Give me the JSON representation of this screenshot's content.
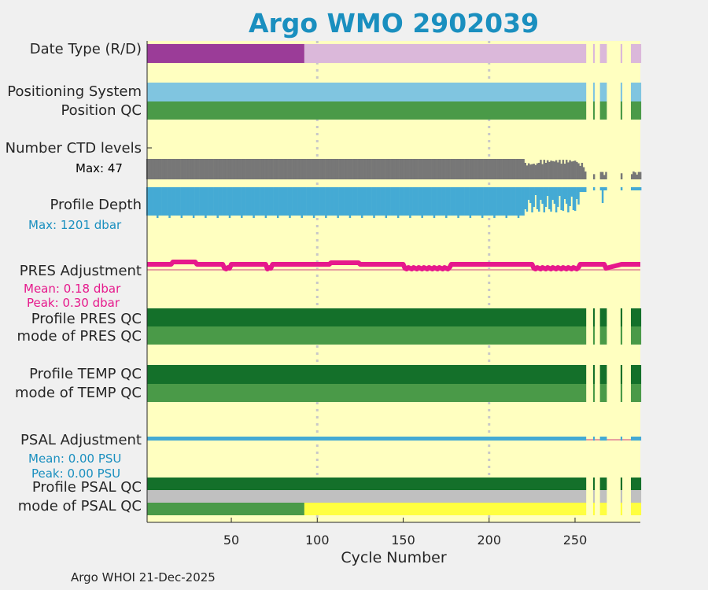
{
  "title": "Argo WMO 2902039",
  "footer": "Argo WHOI 21-Dec-2025",
  "labels": {
    "date_type": "Date Type (R/D)",
    "positioning": "Positioning System",
    "position_qc": "Position QC",
    "ctd_levels": "Number CTD levels",
    "ctd_max": "Max: 47",
    "profile_depth": "Profile Depth",
    "depth_max": "Max: 1201 dbar",
    "pres_adj": "PRES Adjustment",
    "pres_mean": "Mean: 0.18 dbar",
    "pres_peak": "Peak: 0.30 dbar",
    "pres_qc": "Profile PRES QC",
    "pres_mode": "mode of PRES QC",
    "temp_qc": "Profile TEMP QC",
    "temp_mode": "mode of TEMP QC",
    "psal_adj": "PSAL Adjustment",
    "psal_mean": "Mean: 0.00 PSU",
    "psal_peak": "Peak: 0.00 PSU",
    "psal_qc": "Profile PSAL QC",
    "psal_mode": "mode of PSAL QC"
  },
  "colors": {
    "title": "#1a8fbf",
    "background": "#ffffc0",
    "purple_dark": "#9b3c98",
    "purple_light": "#dbb8da",
    "position_blue": "#80c5e0",
    "qc_good": "#4a9a48",
    "qc_dark": "#14702a",
    "ctd_gray": "#777777",
    "depth_blue": "#44aad4",
    "pres_pink": "#e6198c",
    "psal_blue": "#44aad4",
    "qc_gray": "#c0c0c0",
    "qc_yellow": "#ffff40",
    "grid": "#c8c8c8"
  },
  "chart_data": {
    "type": "status-timeline",
    "title": "Argo WMO 2902039",
    "xlabel": "Cycle Number",
    "xlim": [
      1,
      288
    ],
    "xticks": [
      50,
      100,
      150,
      200,
      250
    ],
    "grid_x": [
      100,
      200
    ],
    "gap_cycles": [
      257,
      258,
      259,
      260,
      262,
      263,
      264,
      269,
      270,
      271,
      272,
      273,
      274,
      275,
      276,
      278,
      279,
      280,
      281,
      282
    ],
    "date_type": {
      "delayed_until": 92,
      "realtime_from": 93
    },
    "ctd_levels_max": 47,
    "profile_depth_max_dbar": 1201,
    "pres_adjustment": {
      "mean_dbar": 0.18,
      "peak_dbar": 0.3
    },
    "psal_adjustment": {
      "mean_psu": 0.0,
      "peak_psu": 0.0
    },
    "psal_mode_qc": {
      "good_until": 92,
      "probably_bad_from": 93
    }
  }
}
